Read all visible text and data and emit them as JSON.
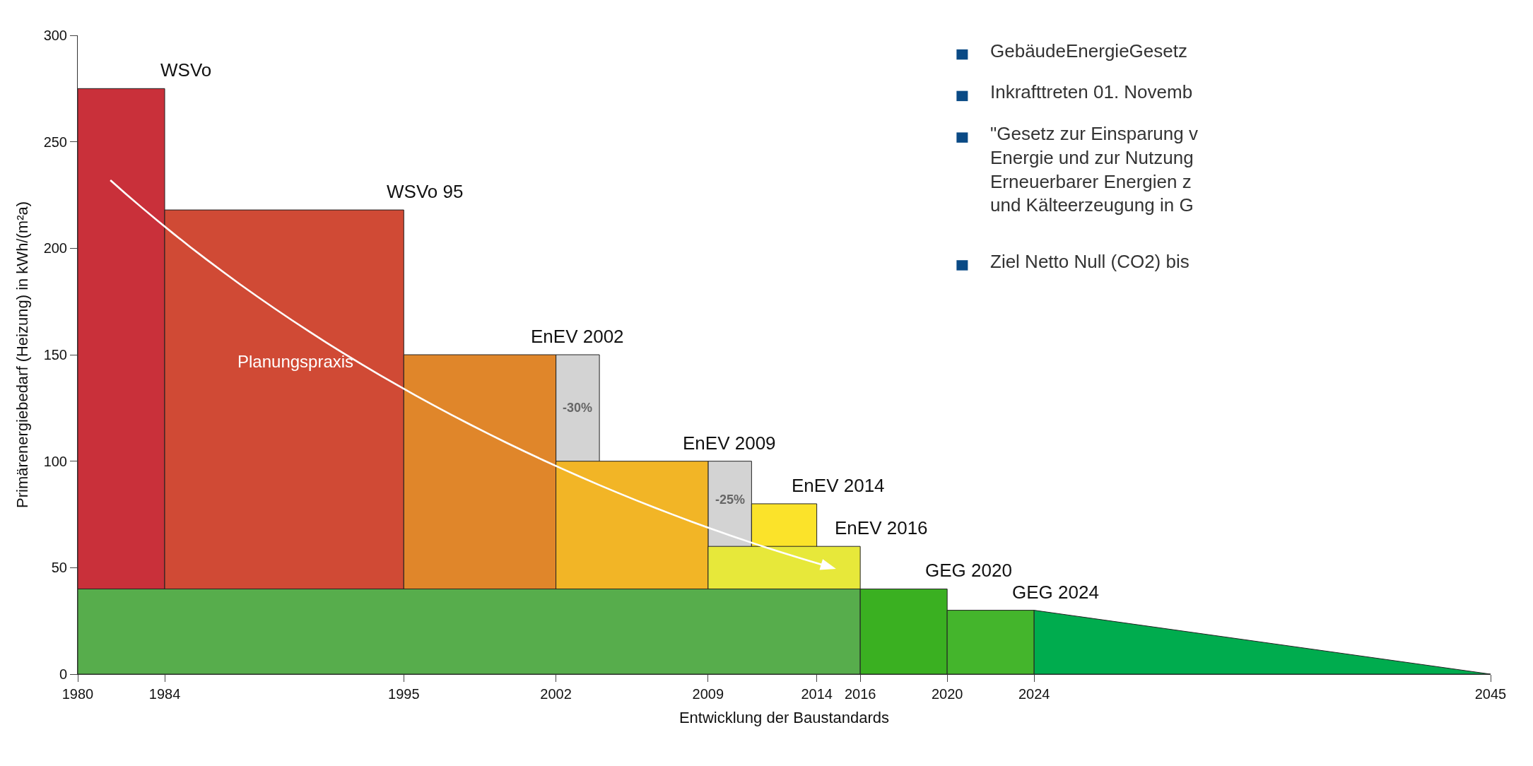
{
  "chart_data": {
    "type": "area",
    "xlabel": "Entwicklung der Baustandards",
    "ylabel": "Primärenergiebedarf (Heizung) in kWh/(m²a)",
    "xlim": [
      1980,
      2045
    ],
    "xticks": [
      1980,
      1984,
      1995,
      2002,
      2009,
      2014,
      2016,
      2020,
      2024,
      2045
    ],
    "ylim": [
      0,
      300
    ],
    "yticks": [
      0,
      50,
      100,
      150,
      200,
      250,
      300
    ],
    "series": [
      {
        "x": [
          2002,
          2004
        ],
        "values": [
          150,
          150
        ],
        "color": "#d3d3d3"
      },
      {
        "x": [
          2009,
          2011
        ],
        "values": [
          100,
          100
        ],
        "color": "#d3d3d3"
      },
      {
        "name": "WSVo",
        "x": [
          1980,
          1984
        ],
        "values": [
          275,
          275
        ],
        "color": "#c9303a"
      },
      {
        "name": "WSVo 95",
        "x": [
          1984,
          1995
        ],
        "values": [
          218,
          218
        ],
        "color": "#d04a35"
      },
      {
        "name": "EnEV 2002",
        "x": [
          1995,
          2002
        ],
        "values": [
          150,
          150
        ],
        "color": "#e0862a"
      },
      {
        "name": "EnEV 2009",
        "x": [
          2002,
          2009
        ],
        "values": [
          100,
          100
        ],
        "color": "#f2b526"
      },
      {
        "name": "EnEV 2014",
        "x": [
          2011,
          2014
        ],
        "values": [
          80,
          80
        ],
        "color": "#fbe32a"
      },
      {
        "name": "EnEV 2016",
        "x": [
          2009,
          2016
        ],
        "values": [
          60,
          60
        ],
        "color": "#e7e83a"
      },
      {
        "x": [
          1980,
          2016
        ],
        "values": [
          40,
          40
        ],
        "color": "#57ad4c"
      },
      {
        "name": "GEG 2020",
        "x": [
          2016,
          2020
        ],
        "values": [
          40,
          40
        ],
        "color": "#3ab021"
      },
      {
        "name": "GEG 2024",
        "x": [
          2020,
          2024
        ],
        "values": [
          30,
          30
        ],
        "color": "#44b52c"
      },
      {
        "x": [
          2024,
          2045
        ],
        "values": [
          30,
          0
        ],
        "color": "#00ac4e"
      }
    ],
    "annotations": [
      "-30%",
      "-25%",
      "Planungspraxis",
      "GebäudeEnergieGesetz",
      "Inkrafttreten 01. Novemb",
      "\"Gesetz zur Einsparung v\nEnergie und zur Nutzung\nErneuerbarer Energien z\nund Kälteerzeugung in G",
      "Ziel Netto Null (CO2) bis"
    ]
  }
}
